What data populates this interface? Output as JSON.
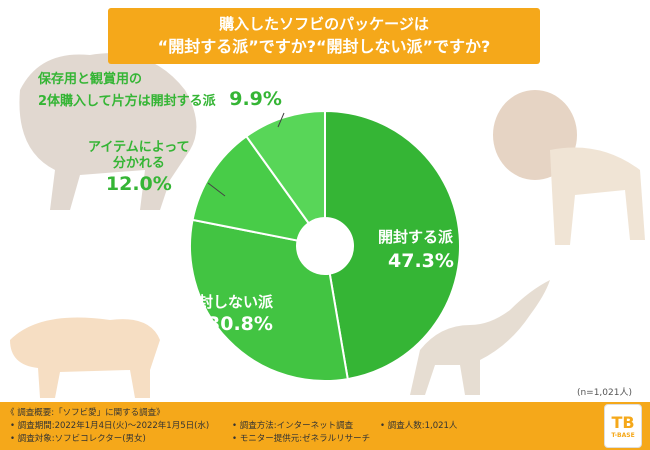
{
  "title": {
    "line1": "購入したソフビのパッケージは",
    "line2": "“開封する派”ですか?“開封しない派”ですか?"
  },
  "chart_data": {
    "type": "pie",
    "title": "購入したソフビのパッケージは“開封する派”ですか?“開封しない派”ですか?",
    "unit": "%",
    "slices": [
      {
        "label": "開封する派",
        "value": 47.3,
        "value_text": "47.3%",
        "color": "#35b535"
      },
      {
        "label": "開封しない派",
        "value": 30.8,
        "value_text": "30.8%",
        "color": "#42c442"
      },
      {
        "label_line1": "アイテムによって",
        "label_line2": "分かれる",
        "value": 12.0,
        "value_text": "12.0%",
        "color": "#48cc48"
      },
      {
        "label_line1": "保存用と観賞用の",
        "label_line2": "2体購入して片方は開封する派",
        "value": 9.9,
        "value_text": "9.9%",
        "color": "#58d658"
      }
    ],
    "sample_note": "(n=1,021人)"
  },
  "footer": {
    "title": "《 調査概要:「ソフビ愛」に関する調査》",
    "period": "• 調査期間:2022年1月4日(火)〜2022年1月5日(水)",
    "method": "• 調査方法:インターネット調査",
    "respondents": "• 調査人数:1,021人",
    "target": "• 調査対象:ソフビコレクター(男女)",
    "provider": "• モニター提供元:ゼネラルリサーチ"
  },
  "logo": {
    "text": "T-BASE"
  },
  "colors": {
    "accent": "#f5a81a",
    "label_green": "#35b535"
  }
}
